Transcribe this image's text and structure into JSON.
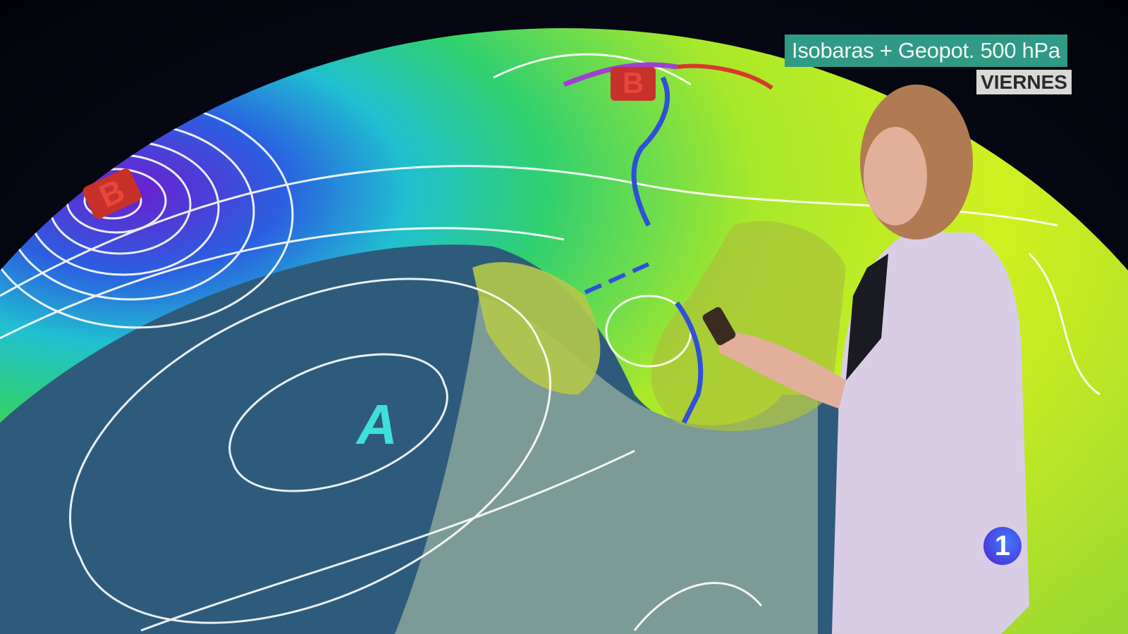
{
  "broadcast": {
    "map_title": "Isobaras + Geopot. 500 hPa",
    "day": "VIERNES",
    "channel_logo": "1"
  },
  "map": {
    "pressure_labels": [
      {
        "label": "B",
        "type": "low",
        "color": "#d8392b"
      },
      {
        "label": "B",
        "type": "low",
        "color": "#d8392b"
      },
      {
        "label": "A",
        "type": "high",
        "color": "#3fe0d8"
      }
    ],
    "colors": {
      "ocean": "#2c5a7a",
      "geopot_low": "#5a2fd0",
      "geopot_mid": "#2fd08a",
      "geopot_high": "#c8f020",
      "isobar": "#ffffff",
      "cold_front": "#2f50d8",
      "warm_front": "#d8392b",
      "occluded_front": "#a040d0"
    }
  }
}
